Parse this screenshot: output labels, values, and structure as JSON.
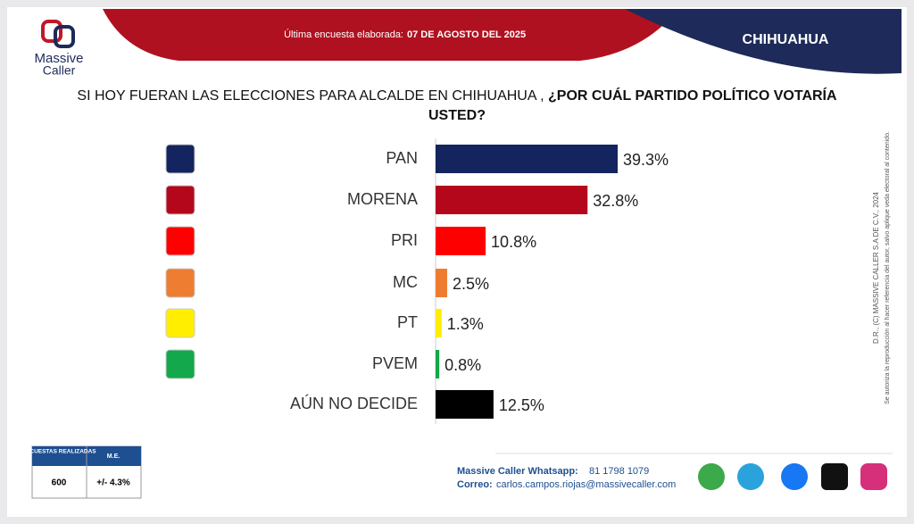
{
  "brand": {
    "line1": "Massive",
    "line2": "Caller"
  },
  "header": {
    "survey_label": "Última encuesta elaborada:",
    "survey_date": "07 DE AGOSTO DEL 2025",
    "region": "CHIHUAHUA"
  },
  "chart_data": {
    "type": "bar",
    "orientation": "horizontal",
    "title": "SI HOY FUERAN LAS ELECCIONES PARA ALCALDE EN CHIHUAHUA ,",
    "title_emphasis": "¿POR CUÁL PARTIDO POLÍTICO VOTARÍA USTED?",
    "categories": [
      "PAN",
      "MORENA",
      "PRI",
      "MC",
      "PT",
      "PVEM",
      "AÚN NO DECIDE"
    ],
    "values": [
      39.3,
      32.8,
      10.8,
      2.5,
      1.3,
      0.8,
      12.5
    ],
    "value_labels": [
      "39.3%",
      "32.8%",
      "10.8%",
      "2.5%",
      "1.3%",
      "0.8%",
      "12.5%"
    ],
    "colors": [
      "#14245e",
      "#b5071b",
      "#ff0000",
      "#ee7d31",
      "#ffee00",
      "#13a84b",
      "#000000"
    ]
  },
  "side_note": {
    "copyright": "D.R., (C) MASSIVE CALLER S.A DE C.V., 2024",
    "permission": "Se autoriza la reproducción al hacer referencia del autor, salvo aplique veda electoral al contenido."
  },
  "survey_table": {
    "headers": [
      "ENCUESTAS REALIZADAS",
      "M.E."
    ],
    "row": [
      "600",
      "+/- 4.3%"
    ]
  },
  "footer": {
    "whatsapp_label": "Massive Caller Whatsapp:",
    "whatsapp": "81 1798 1079",
    "email_label": "Correo:",
    "email": "carlos.campos.riojas@massivecaller.com"
  }
}
